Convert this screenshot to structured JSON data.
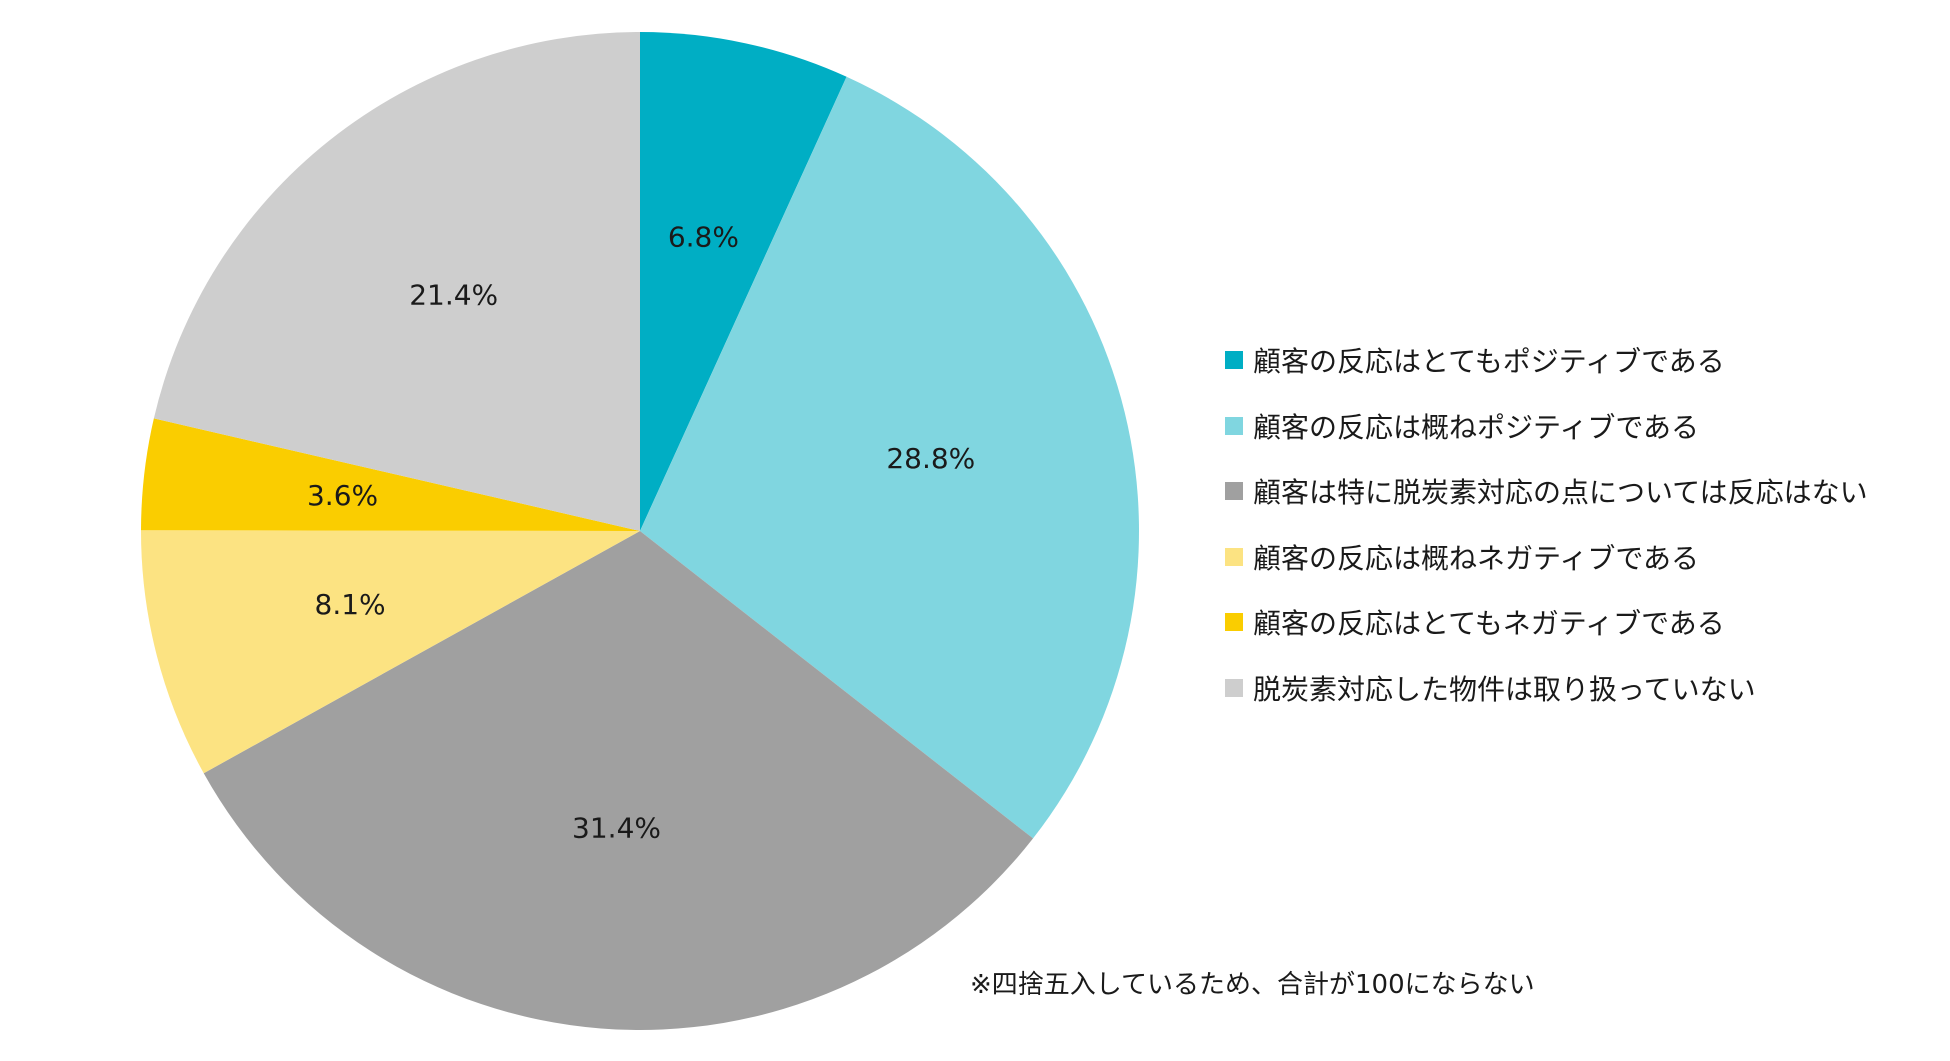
{
  "chart_data": {
    "type": "pie",
    "start_angle": "12 o'clock",
    "direction": "clockwise",
    "legend_placement": "right",
    "slices": [
      {
        "name": "顧客の反応はとてもポジティブである",
        "value": 6.8,
        "label": "6.8%",
        "color": "#00AEC4"
      },
      {
        "name": "顧客の反応は概ねポジティブである",
        "value": 28.8,
        "label": "28.8%",
        "color": "#80D6E0"
      },
      {
        "name": "顧客は特に脱炭素対応の点については反応はない",
        "value": 31.4,
        "label": "31.4%",
        "color": "#A0A0A0"
      },
      {
        "name": "顧客の反応は概ねネガティブである",
        "value": 8.1,
        "label": "8.1%",
        "color": "#FCE382"
      },
      {
        "name": "顧客の反応はとてもネガティブである",
        "value": 3.6,
        "label": "3.6%",
        "color": "#FACD00"
      },
      {
        "name": "脱炭素対応した物件は取り扱っていない",
        "value": 21.4,
        "label": "21.4%",
        "color": "#CECECE"
      }
    ]
  },
  "footnote": "※四捨五入しているため、合計が100にならない"
}
